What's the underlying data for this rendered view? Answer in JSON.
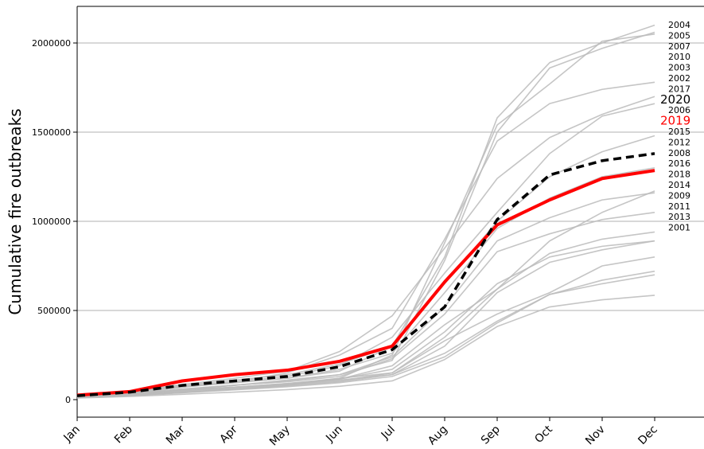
{
  "chart_data": {
    "type": "line",
    "title": "",
    "xlabel": "",
    "ylabel": "Cumulative fire outbreaks",
    "categories": [
      "Jan",
      "Feb",
      "Mar",
      "Apr",
      "May",
      "Jun",
      "Jul",
      "Aug",
      "Sep",
      "Oct",
      "Nov",
      "Dec"
    ],
    "yticks": [
      0,
      500000,
      1000000,
      1500000,
      2000000
    ],
    "ytick_labels": [
      "0",
      "500000",
      "1000000",
      "1500000",
      "2000000"
    ],
    "ylim": [
      -100000,
      2200000
    ],
    "grid": "horizontal",
    "background_color": "#bbbbbb",
    "highlight_colors": {
      "2020": "#000000",
      "2019": "#ff0000"
    },
    "series": [
      {
        "name": "2004",
        "style": "background",
        "values": [
          20000,
          40000,
          75000,
          95000,
          120000,
          160000,
          300000,
          800000,
          1580000,
          1890000,
          2000000,
          2100000
        ]
      },
      {
        "name": "2005",
        "style": "background",
        "values": [
          18000,
          35000,
          60000,
          80000,
          110000,
          140000,
          220000,
          780000,
          1500000,
          1860000,
          1970000,
          2060000
        ]
      },
      {
        "name": "2007",
        "style": "background",
        "values": [
          16000,
          32000,
          55000,
          70000,
          90000,
          120000,
          250000,
          880000,
          1540000,
          1770000,
          2010000,
          2050000
        ]
      },
      {
        "name": "2010",
        "style": "background",
        "values": [
          24000,
          50000,
          75000,
          100000,
          150000,
          250000,
          400000,
          900000,
          1450000,
          1660000,
          1740000,
          1780000
        ]
      },
      {
        "name": "2003",
        "style": "background",
        "values": [
          22000,
          45000,
          85000,
          120000,
          160000,
          270000,
          470000,
          850000,
          1240000,
          1470000,
          1600000,
          1700000
        ]
      },
      {
        "name": "2002",
        "style": "background",
        "values": [
          20000,
          40000,
          70000,
          100000,
          130000,
          190000,
          350000,
          710000,
          1050000,
          1380000,
          1590000,
          1660000
        ]
      },
      {
        "name": "2017",
        "style": "background",
        "values": [
          21000,
          44000,
          80000,
          110000,
          140000,
          200000,
          300000,
          650000,
          1000000,
          1250000,
          1390000,
          1480000
        ]
      },
      {
        "name": "2006",
        "style": "background",
        "values": [
          17000,
          38000,
          70000,
          95000,
          120000,
          170000,
          260000,
          600000,
          960000,
          1130000,
          1250000,
          1300000
        ]
      },
      {
        "name": "2015",
        "style": "background",
        "values": [
          12000,
          25000,
          40000,
          60000,
          80000,
          120000,
          150000,
          350000,
          620000,
          890000,
          1050000,
          1170000
        ]
      },
      {
        "name": "2012",
        "style": "background",
        "values": [
          15000,
          32000,
          55000,
          80000,
          105000,
          140000,
          240000,
          520000,
          890000,
          1020000,
          1120000,
          1160000
        ]
      },
      {
        "name": "2008",
        "style": "background",
        "values": [
          16000,
          34000,
          58000,
          82000,
          100000,
          130000,
          230000,
          480000,
          830000,
          930000,
          1010000,
          1050000
        ]
      },
      {
        "name": "2016",
        "style": "background",
        "values": [
          14000,
          30000,
          50000,
          70000,
          90000,
          115000,
          190000,
          420000,
          620000,
          820000,
          900000,
          940000
        ]
      },
      {
        "name": "2018",
        "style": "background",
        "values": [
          15000,
          30000,
          50000,
          70000,
          85000,
          110000,
          140000,
          300000,
          600000,
          770000,
          840000,
          890000
        ]
      },
      {
        "name": "2014",
        "style": "background",
        "values": [
          13000,
          28000,
          45000,
          65000,
          85000,
          115000,
          170000,
          380000,
          650000,
          800000,
          860000,
          890000
        ]
      },
      {
        "name": "2009",
        "style": "background",
        "values": [
          12000,
          26000,
          42000,
          60000,
          80000,
          105000,
          150000,
          330000,
          480000,
          600000,
          750000,
          800000
        ]
      },
      {
        "name": "2011",
        "style": "background",
        "values": [
          11000,
          24000,
          40000,
          58000,
          76000,
          100000,
          140000,
          260000,
          440000,
          590000,
          670000,
          720000
        ]
      },
      {
        "name": "2013",
        "style": "background",
        "values": [
          10000,
          22000,
          38000,
          55000,
          72000,
          95000,
          130000,
          240000,
          430000,
          590000,
          650000,
          700000
        ]
      },
      {
        "name": "2001",
        "style": "background",
        "values": [
          9000,
          18000,
          30000,
          42000,
          56000,
          75000,
          105000,
          225000,
          410000,
          520000,
          560000,
          585000
        ]
      },
      {
        "name": "2019",
        "style": "highlight-red",
        "values": [
          25000,
          45000,
          105000,
          140000,
          165000,
          215000,
          300000,
          660000,
          980000,
          1120000,
          1240000,
          1285000
        ]
      },
      {
        "name": "2020",
        "style": "highlight-black-dashed",
        "values": [
          22000,
          42000,
          80000,
          105000,
          130000,
          185000,
          280000,
          520000,
          1010000,
          1260000,
          1340000,
          1380000
        ]
      }
    ],
    "label_order": [
      "2004",
      "2005",
      "2007",
      "2010",
      "2003",
      "2002",
      "2017",
      "2020",
      "2006",
      "2019",
      "2015",
      "2012",
      "2008",
      "2016",
      "2018",
      "2014",
      "2009",
      "2011",
      "2013",
      "2001"
    ]
  }
}
